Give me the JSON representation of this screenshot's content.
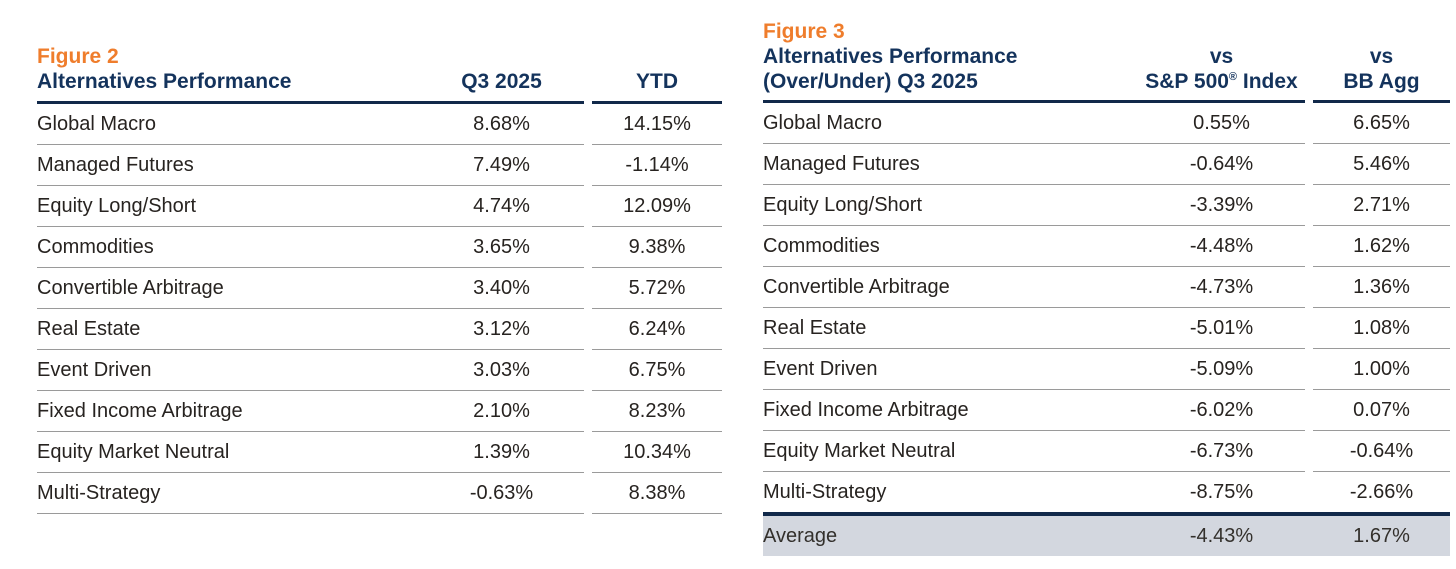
{
  "colors": {
    "accent_orange": "#EF7D2C",
    "navy": "#14335C",
    "rule_navy": "#11294A",
    "row_separator_gray": "#9A9A9A",
    "body_text": "#272320",
    "average_row_bg": "#D3D7DF",
    "background": "#FFFFFF"
  },
  "chart_data": [
    {
      "type": "table",
      "figure_label": "Figure 2",
      "title": "Alternatives Performance",
      "columns": [
        "Q3 2025",
        "YTD"
      ],
      "rows": [
        [
          "Global Macro",
          "8.68%",
          "14.15%"
        ],
        [
          "Managed Futures",
          "7.49%",
          "-1.14%"
        ],
        [
          "Equity Long/Short",
          "4.74%",
          "12.09%"
        ],
        [
          "Commodities",
          "3.65%",
          "9.38%"
        ],
        [
          "Convertible Arbitrage",
          "3.40%",
          "5.72%"
        ],
        [
          "Real Estate",
          "3.12%",
          "6.24%"
        ],
        [
          "Event Driven",
          "3.03%",
          "6.75%"
        ],
        [
          "Fixed Income Arbitrage",
          "2.10%",
          "8.23%"
        ],
        [
          "Equity Market Neutral",
          "1.39%",
          "10.34%"
        ],
        [
          "Multi-Strategy",
          "-0.63%",
          "8.38%"
        ]
      ]
    },
    {
      "type": "table",
      "figure_label": "Figure 3",
      "title_line1": "Alternatives Performance",
      "title_line2": "(Over/Under) Q3 2025",
      "columns": [
        {
          "line1": "vs",
          "name_pre": "S&P 500",
          "reg_mark": "®",
          "name_post": "Index"
        },
        {
          "line1": "vs",
          "line2": "BB Agg"
        }
      ],
      "rows": [
        [
          "Global Macro",
          "0.55%",
          "6.65%"
        ],
        [
          "Managed Futures",
          "-0.64%",
          "5.46%"
        ],
        [
          "Equity Long/Short",
          "-3.39%",
          "2.71%"
        ],
        [
          "Commodities",
          "-4.48%",
          "1.62%"
        ],
        [
          "Convertible Arbitrage",
          "-4.73%",
          "1.36%"
        ],
        [
          "Real Estate",
          "-5.01%",
          "1.08%"
        ],
        [
          "Event Driven",
          "-5.09%",
          "1.00%"
        ],
        [
          "Fixed Income Arbitrage",
          "-6.02%",
          "0.07%"
        ],
        [
          "Equity Market Neutral",
          "-6.73%",
          "-0.64%"
        ],
        [
          "Multi-Strategy",
          "-8.75%",
          "-2.66%"
        ]
      ],
      "summary_row": [
        "Average",
        "-4.43%",
        "1.67%"
      ]
    }
  ]
}
